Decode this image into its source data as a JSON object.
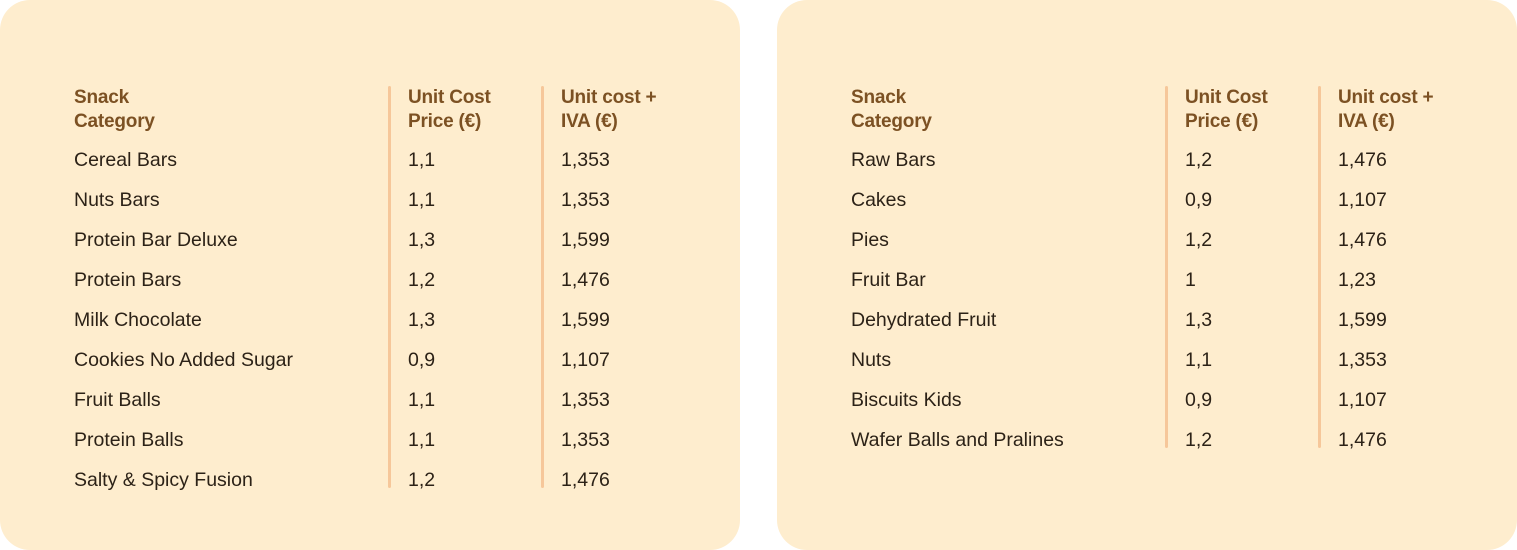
{
  "tables": [
    {
      "headers": {
        "category": "Snack\nCategory",
        "cost": "Unit Cost\nPrice (€)",
        "iva": "Unit cost +\nIVA (€)"
      },
      "rows": [
        {
          "category": "Cereal Bars",
          "cost": "1,1",
          "iva": "1,353"
        },
        {
          "category": "Nuts Bars",
          "cost": "1,1",
          "iva": "1,353"
        },
        {
          "category": "Protein Bar Deluxe",
          "cost": "1,3",
          "iva": "1,599"
        },
        {
          "category": "Protein Bars",
          "cost": "1,2",
          "iva": "1,476"
        },
        {
          "category": "Milk Chocolate",
          "cost": "1,3",
          "iva": "1,599"
        },
        {
          "category": "Cookies No Added Sugar",
          "cost": "0,9",
          "iva": "1,107"
        },
        {
          "category": "Fruit Balls",
          "cost": "1,1",
          "iva": "1,353"
        },
        {
          "category": "Protein Balls",
          "cost": "1,1",
          "iva": "1,353"
        },
        {
          "category": "Salty & Spicy Fusion",
          "cost": "1,2",
          "iva": "1,476"
        }
      ]
    },
    {
      "headers": {
        "category": "Snack\nCategory",
        "cost": "Unit Cost\nPrice (€)",
        "iva": "Unit cost +\nIVA (€)"
      },
      "rows": [
        {
          "category": "Raw Bars",
          "cost": "1,2",
          "iva": "1,476"
        },
        {
          "category": "Cakes",
          "cost": "0,9",
          "iva": "1,107"
        },
        {
          "category": "Pies",
          "cost": "1,2",
          "iva": "1,476"
        },
        {
          "category": "Fruit Bar",
          "cost": "1",
          "iva": "1,23"
        },
        {
          "category": "Dehydrated Fruit",
          "cost": "1,3",
          "iva": "1,599"
        },
        {
          "category": "Nuts",
          "cost": "1,1",
          "iva": "1,353"
        },
        {
          "category": "Biscuits Kids",
          "cost": "0,9",
          "iva": "1,107"
        },
        {
          "category": "Wafer Balls and Pralines",
          "cost": "1,2",
          "iva": "1,476"
        }
      ]
    }
  ],
  "colors": {
    "card_background": "#feedce",
    "header_text": "#7c5123",
    "body_text": "#2c2217",
    "divider": "#f6c79a"
  }
}
